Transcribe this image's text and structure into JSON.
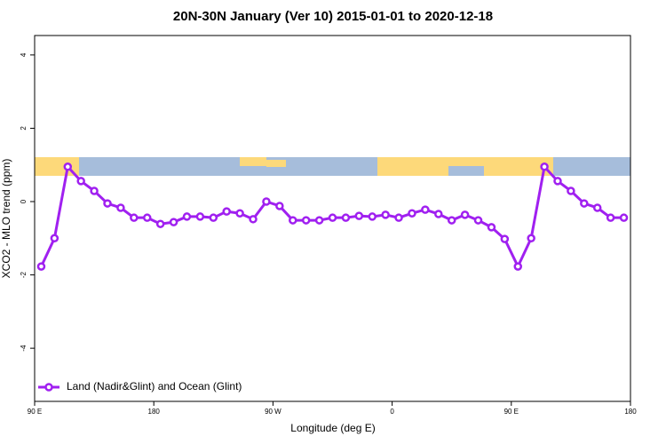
{
  "chart_data": {
    "type": "line",
    "title": "20N-30N January (Ver 10)   2015-01-01 to 2020-12-18",
    "xlabel": "Longitude (deg E)",
    "ylabel": "XCO2 - MLO trend (ppm)",
    "x": [
      95,
      105,
      115,
      125,
      135,
      145,
      155,
      165,
      175,
      185,
      195,
      205,
      215,
      225,
      235,
      245,
      255,
      265,
      275,
      285,
      295,
      305,
      315,
      325,
      335,
      345,
      355,
      365,
      375,
      385,
      395,
      405,
      415,
      425,
      435,
      445,
      455,
      465,
      475,
      485,
      495,
      505,
      515,
      525,
      535
    ],
    "series": [
      {
        "name": "Land (Nadir&Glint) and Ocean (Glint)",
        "color": "#a020f0",
        "values": [
          -1.77,
          -1.0,
          0.95,
          0.56,
          0.29,
          -0.05,
          -0.17,
          -0.44,
          -0.44,
          -0.61,
          -0.56,
          -0.41,
          -0.41,
          -0.44,
          -0.27,
          -0.32,
          -0.48,
          0.0,
          -0.12,
          -0.51,
          -0.51,
          -0.51,
          -0.44,
          -0.44,
          -0.39,
          -0.41,
          -0.36,
          -0.44,
          -0.32,
          -0.22,
          -0.34,
          -0.51,
          -0.36,
          -0.51,
          -0.7,
          -1.02,
          -1.77,
          -1.0,
          0.95,
          0.56,
          0.29,
          -0.05,
          -0.17,
          -0.44,
          -0.44
        ]
      }
    ],
    "xlim": [
      90,
      540
    ],
    "xticks": [
      {
        "value": 90,
        "label": "90 E"
      },
      {
        "value": 180,
        "label": "180"
      },
      {
        "value": 270,
        "label": "90 W"
      },
      {
        "value": 360,
        "label": "0"
      },
      {
        "value": 450,
        "label": "90 E"
      },
      {
        "value": 540,
        "label": "180"
      }
    ],
    "ylim": [
      -5.45,
      4.53
    ],
    "yticks": [
      -4,
      -2,
      0,
      2,
      4
    ],
    "grid": false,
    "legend": "bottom-left"
  }
}
